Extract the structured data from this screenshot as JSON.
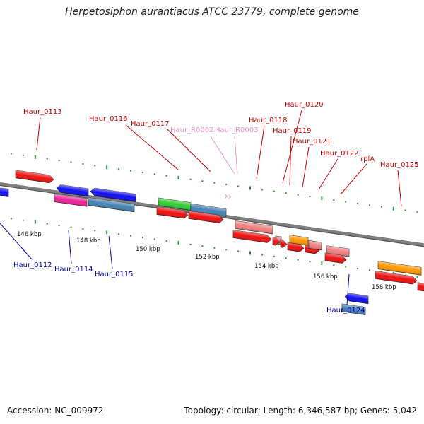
{
  "title": "Herpetosiphon aurantiacus ATCC 23779, complete genome",
  "accession_text": "Accession: NC_009972",
  "topology_text": "Topology: circular; Length: 6,346,587 bp; Genes: 5,042",
  "colors": {
    "backbone": "#808080",
    "tick": "#2e8b2e",
    "forward_label": "#cc0000",
    "reverse_label": "#0000aa",
    "rna_label": "#f090c0"
  },
  "scale_labels": [
    "146 kbp",
    "148 kbp",
    "150 kbp",
    "152 kbp",
    "154 kbp",
    "156 kbp",
    "158 kbp"
  ],
  "gene_labels": [
    {
      "text": "Haur_0113",
      "strand": "forward"
    },
    {
      "text": "Haur_0116",
      "strand": "forward"
    },
    {
      "text": "Haur_0117",
      "strand": "forward"
    },
    {
      "text": "Haur_R0002",
      "strand": "rna"
    },
    {
      "text": "Haur_R0003",
      "strand": "rna"
    },
    {
      "text": "Haur_0118",
      "strand": "forward"
    },
    {
      "text": "Haur_0120",
      "strand": "forward"
    },
    {
      "text": "Haur_0119",
      "strand": "forward"
    },
    {
      "text": "Haur_0121",
      "strand": "forward"
    },
    {
      "text": "Haur_0122",
      "strand": "forward"
    },
    {
      "text": "rplA",
      "strand": "forward"
    },
    {
      "text": "Haur_0125",
      "strand": "forward"
    },
    {
      "text": "Haur_0112",
      "strand": "reverse"
    },
    {
      "text": "Haur_0114",
      "strand": "reverse"
    },
    {
      "text": "Haur_0115",
      "strand": "reverse"
    },
    {
      "text": "Haur_0124",
      "strand": "reverse"
    }
  ]
}
